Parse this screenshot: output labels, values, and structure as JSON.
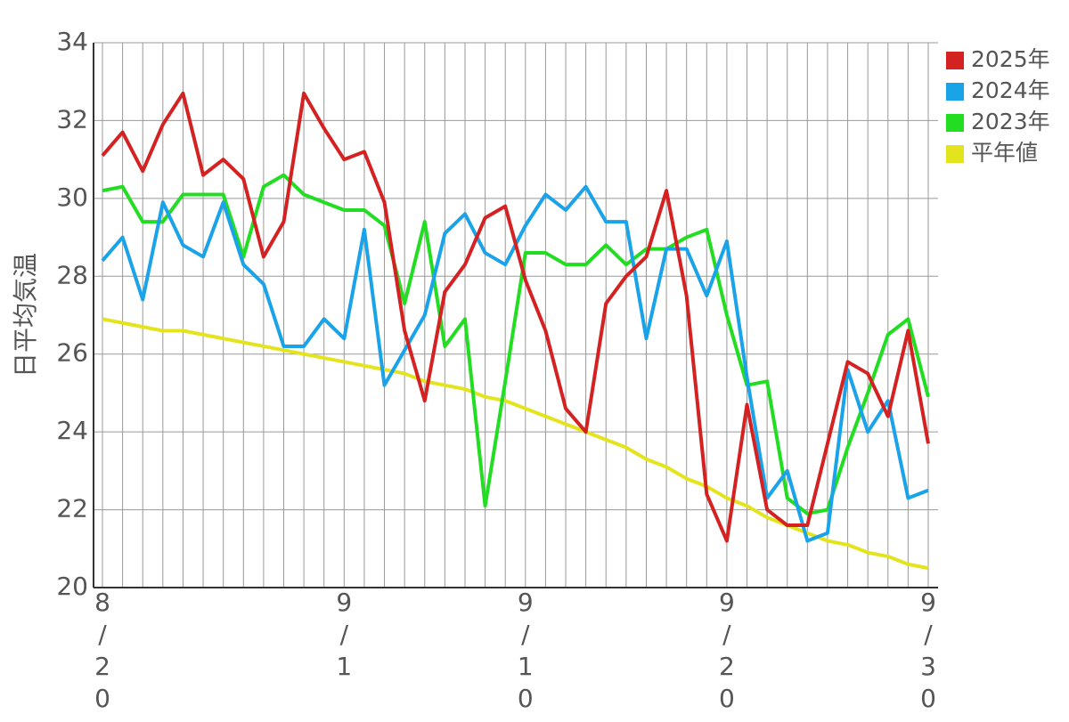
{
  "chart_data": {
    "type": "line",
    "y_label": "日平均気温",
    "categories": [
      "8/20",
      null,
      null,
      null,
      null,
      null,
      null,
      null,
      null,
      null,
      null,
      null,
      "9/1",
      null,
      null,
      null,
      null,
      null,
      null,
      null,
      null,
      "9/10",
      null,
      null,
      null,
      null,
      null,
      null,
      null,
      null,
      null,
      "9/20",
      null,
      null,
      null,
      null,
      null,
      null,
      null,
      null,
      null,
      "9/30"
    ],
    "series": [
      {
        "name": "2025年",
        "color": "#d42222",
        "values": [
          31.1,
          31.7,
          30.7,
          31.9,
          32.7,
          30.6,
          31.0,
          30.5,
          28.5,
          29.4,
          32.7,
          31.8,
          31.0,
          31.2,
          29.9,
          26.6,
          24.8,
          27.6,
          28.3,
          29.5,
          29.8,
          27.9,
          26.6,
          24.6,
          24.0,
          27.3,
          28.0,
          28.5,
          30.2,
          27.5,
          22.4,
          21.2,
          24.7,
          22.0,
          21.6,
          21.6,
          23.7,
          25.8,
          25.5,
          24.4,
          26.6,
          23.7
        ]
      },
      {
        "name": "2024年",
        "color": "#1aa3e8",
        "values": [
          28.4,
          29.0,
          27.4,
          29.9,
          28.8,
          28.5,
          29.9,
          28.3,
          27.8,
          26.2,
          26.2,
          26.9,
          26.4,
          29.2,
          25.2,
          26.1,
          27.0,
          29.1,
          29.6,
          28.6,
          28.3,
          29.3,
          30.1,
          29.7,
          30.3,
          29.4,
          29.4,
          26.4,
          28.7,
          28.7,
          27.5,
          28.9,
          25.4,
          22.3,
          23.0,
          21.2,
          21.4,
          25.6,
          24.0,
          24.8,
          22.3,
          22.5
        ]
      },
      {
        "name": "2023年",
        "color": "#22dd22",
        "values": [
          30.2,
          30.3,
          29.4,
          29.4,
          30.1,
          30.1,
          30.1,
          28.5,
          30.3,
          30.6,
          30.1,
          29.9,
          29.7,
          29.7,
          29.3,
          27.3,
          29.4,
          26.2,
          26.9,
          22.1,
          25.3,
          28.6,
          28.6,
          28.3,
          28.3,
          28.8,
          28.3,
          28.7,
          28.7,
          29.0,
          29.2,
          27.0,
          25.2,
          25.3,
          22.3,
          21.9,
          22.0,
          23.6,
          25.0,
          26.5,
          26.9,
          24.9
        ]
      },
      {
        "name": "平年値",
        "color": "#e4e41e",
        "values": [
          26.9,
          26.8,
          26.7,
          26.6,
          26.6,
          26.5,
          26.4,
          26.3,
          26.2,
          26.1,
          26.0,
          25.9,
          25.8,
          25.7,
          25.6,
          25.5,
          25.3,
          25.2,
          25.1,
          24.9,
          24.8,
          24.6,
          24.4,
          24.2,
          24.0,
          23.8,
          23.6,
          23.3,
          23.1,
          22.8,
          22.6,
          22.3,
          22.1,
          21.8,
          21.6,
          21.4,
          21.2,
          21.1,
          20.9,
          20.8,
          20.6,
          20.5
        ]
      }
    ],
    "ylim": [
      20,
      34
    ],
    "yticks": [
      20,
      22,
      24,
      26,
      28,
      30,
      32,
      34
    ],
    "grid": true,
    "legend": "top-right"
  }
}
